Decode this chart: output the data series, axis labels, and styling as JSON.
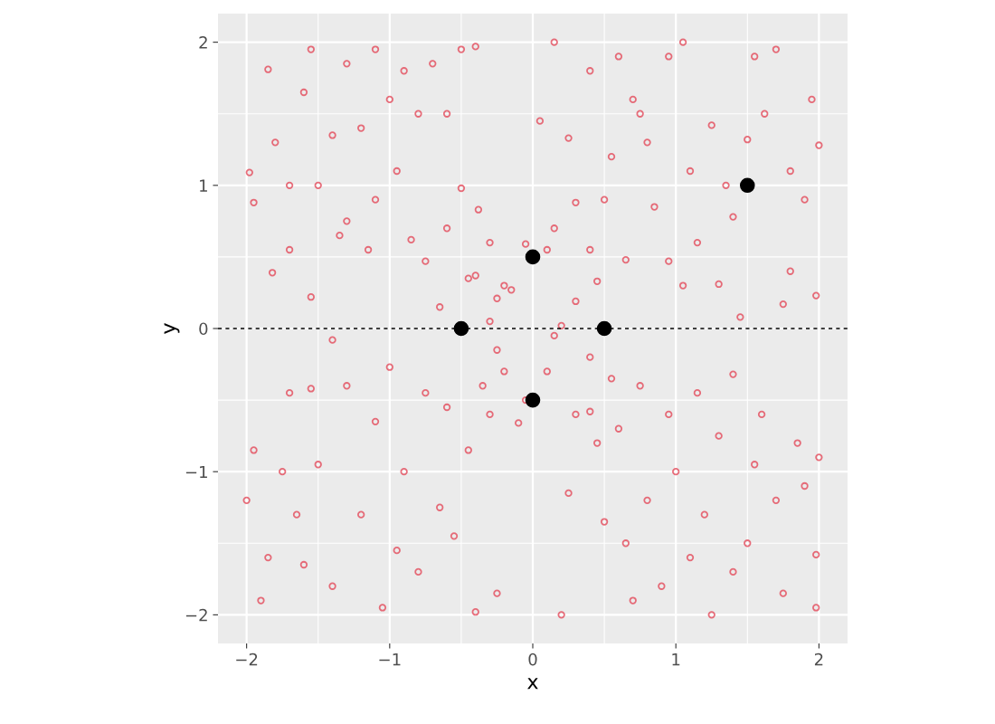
{
  "chart_data": {
    "type": "scatter",
    "xlabel": "x",
    "ylabel": "y",
    "xlim": [
      -2.2,
      2.2
    ],
    "ylim": [
      -2.2,
      2.2
    ],
    "xticks": [
      {
        "value": -2,
        "label": "−2"
      },
      {
        "value": -1.5,
        "label": null
      },
      {
        "value": -1,
        "label": "−1"
      },
      {
        "value": -0.5,
        "label": null
      },
      0,
      {
        "value": 0.5,
        "label": null
      },
      1,
      {
        "value": 1.5,
        "label": null
      },
      2
    ],
    "yticks": [
      {
        "value": -2,
        "label": "−2"
      },
      {
        "value": -1.5,
        "label": null
      },
      {
        "value": -1,
        "label": "−1"
      },
      {
        "value": -0.5,
        "label": null
      },
      0,
      {
        "value": 0.5,
        "label": null
      },
      1,
      {
        "value": 1.5,
        "label": null
      },
      2
    ],
    "grid": true,
    "legend": false,
    "marker": "circle",
    "ref_lines": [
      {
        "axis": "y",
        "value": 0,
        "label": null,
        "color": "#000000",
        "line_style": "dashed"
      }
    ],
    "series": [
      {
        "color": "#e34a5a",
        "x": [
          -1.98,
          -1.95,
          -1.85,
          -1.8,
          -1.7,
          -1.6,
          -1.55,
          -1.5,
          -1.4,
          -1.3,
          -1.2,
          -1.1,
          -1.0,
          -0.9,
          -0.8,
          -0.7,
          -0.6,
          -0.5,
          -0.4,
          -0.95,
          -1.1,
          -1.3,
          -1.55,
          -1.82,
          -1.7,
          -1.35,
          -1.15,
          -0.85,
          -0.75,
          -0.6,
          -0.5,
          -0.45,
          -0.38,
          -0.3,
          -0.25,
          -0.2,
          -0.15,
          -0.3,
          -0.4,
          -0.65,
          -1.4,
          0.05,
          0.15,
          0.25,
          0.3,
          0.4,
          0.4,
          0.5,
          0.55,
          0.6,
          0.7,
          0.75,
          0.8,
          0.85,
          0.95,
          1.05,
          1.1,
          1.15,
          1.25,
          1.35,
          1.4,
          1.5,
          1.55,
          1.62,
          1.7,
          1.8,
          1.9,
          1.95,
          2.0,
          1.98,
          1.8,
          1.75,
          1.45,
          1.3,
          1.05,
          0.95,
          0.65,
          0.45,
          0.3,
          0.2,
          0.15,
          -0.05,
          0.1,
          -2.0,
          -1.95,
          -1.9,
          -1.85,
          -1.75,
          -1.7,
          -1.6,
          -1.5,
          -1.4,
          -1.3,
          -1.2,
          -1.1,
          -1.05,
          -1.0,
          -0.95,
          -0.9,
          -0.8,
          -0.75,
          -0.65,
          -0.6,
          -0.55,
          -0.45,
          -0.4,
          -0.35,
          -0.3,
          -0.25,
          -0.2,
          -0.1,
          -0.05,
          -0.25,
          -1.55,
          -1.65,
          0.1,
          0.15,
          0.2,
          0.25,
          0.3,
          0.4,
          0.45,
          0.5,
          0.6,
          0.65,
          0.7,
          0.75,
          0.8,
          0.9,
          0.95,
          1.0,
          1.1,
          1.15,
          1.2,
          1.25,
          1.3,
          1.4,
          1.5,
          1.55,
          1.6,
          1.7,
          1.75,
          1.85,
          1.9,
          1.98,
          1.98,
          2.0,
          1.4,
          0.4,
          0.55
        ],
        "values": [
          1.09,
          0.88,
          1.81,
          1.3,
          1.0,
          1.65,
          1.95,
          1.0,
          1.35,
          1.85,
          1.4,
          1.95,
          1.6,
          1.8,
          1.5,
          1.85,
          1.5,
          1.95,
          1.97,
          1.1,
          0.9,
          0.75,
          0.22,
          0.39,
          0.55,
          0.65,
          0.55,
          0.62,
          0.47,
          0.7,
          0.98,
          0.35,
          0.83,
          0.6,
          0.21,
          0.3,
          0.27,
          0.05,
          0.37,
          0.15,
          -0.08,
          1.45,
          2.0,
          1.33,
          0.88,
          1.8,
          0.55,
          0.9,
          1.2,
          1.9,
          1.6,
          1.5,
          1.3,
          0.85,
          1.9,
          2.0,
          1.1,
          0.6,
          1.42,
          1.0,
          0.78,
          1.32,
          1.9,
          1.5,
          1.95,
          1.1,
          0.9,
          1.6,
          1.28,
          0.23,
          0.4,
          0.17,
          0.08,
          0.31,
          0.3,
          0.47,
          0.48,
          0.33,
          0.19,
          0.02,
          0.7,
          0.59,
          0.55,
          -1.2,
          -0.85,
          -1.9,
          -1.6,
          -1.0,
          -0.45,
          -1.65,
          -0.95,
          -1.8,
          -0.4,
          -1.3,
          -0.65,
          -1.95,
          -0.27,
          -1.55,
          -1.0,
          -1.7,
          -0.45,
          -1.25,
          -0.55,
          -1.45,
          -0.85,
          -1.98,
          -0.4,
          -0.6,
          -0.15,
          -0.3,
          -0.66,
          -0.5,
          -1.85,
          -0.42,
          -1.3,
          -0.3,
          -0.05,
          -2.0,
          -1.15,
          -0.6,
          -0.2,
          -0.8,
          -1.35,
          -0.7,
          -1.5,
          -1.9,
          -0.4,
          -1.2,
          -1.8,
          -0.6,
          -1.0,
          -1.6,
          -0.45,
          -1.3,
          -2.0,
          -0.75,
          -1.7,
          -1.5,
          -0.95,
          -0.6,
          -1.2,
          -1.85,
          -0.8,
          -1.1,
          -1.95,
          -1.58,
          -0.9,
          -0.32,
          -0.58,
          -0.35
        ]
      },
      {
        "color": "#000000",
        "x": [
          1.5,
          0,
          -0.5,
          0.5,
          0
        ],
        "values": [
          1,
          0.5,
          0,
          0,
          -0.5
        ]
      }
    ]
  }
}
